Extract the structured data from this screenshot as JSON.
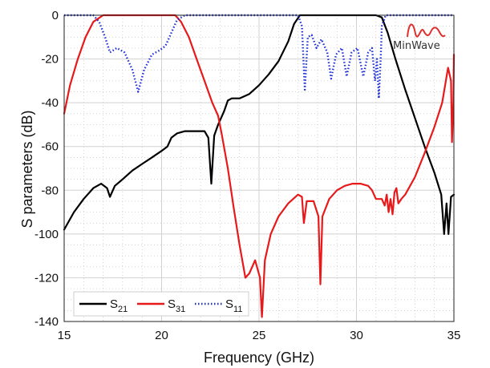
{
  "chart_data": {
    "type": "line",
    "xlabel": "Frequency (GHz)",
    "ylabel": "S parameters (dB)",
    "xlim": [
      15,
      35
    ],
    "ylim": [
      -140,
      0
    ],
    "xticks": [
      15,
      20,
      25,
      30,
      35
    ],
    "yticks": [
      0,
      -20,
      -40,
      -60,
      -80,
      -100,
      -120,
      -140
    ],
    "grid": true,
    "minor_grid": true,
    "legend_position": "bottom-left",
    "logo": "MinWave",
    "series": [
      {
        "name": "S21",
        "base": "S",
        "sub": "21",
        "color": "#000000",
        "dash": "solid",
        "points": [
          [
            15,
            -98
          ],
          [
            15.5,
            -90
          ],
          [
            16,
            -84
          ],
          [
            16.5,
            -79
          ],
          [
            16.9,
            -77
          ],
          [
            17.2,
            -79
          ],
          [
            17.35,
            -83
          ],
          [
            17.6,
            -78
          ],
          [
            18,
            -75
          ],
          [
            18.5,
            -71
          ],
          [
            19,
            -68
          ],
          [
            19.5,
            -65
          ],
          [
            20,
            -62
          ],
          [
            20.3,
            -60
          ],
          [
            20.5,
            -56
          ],
          [
            20.8,
            -54
          ],
          [
            21.2,
            -53
          ],
          [
            21.6,
            -53
          ],
          [
            22.2,
            -53
          ],
          [
            22.4,
            -56
          ],
          [
            22.55,
            -77
          ],
          [
            22.7,
            -55
          ],
          [
            22.9,
            -50
          ],
          [
            23.2,
            -44
          ],
          [
            23.4,
            -39
          ],
          [
            23.6,
            -38
          ],
          [
            24,
            -38
          ],
          [
            24.5,
            -36
          ],
          [
            25,
            -32
          ],
          [
            25.5,
            -27
          ],
          [
            26,
            -21
          ],
          [
            26.5,
            -12
          ],
          [
            26.8,
            -4
          ],
          [
            27.1,
            0
          ],
          [
            28,
            0
          ],
          [
            30,
            0
          ],
          [
            31,
            0
          ],
          [
            31.3,
            -1
          ],
          [
            31.6,
            -8
          ],
          [
            32,
            -20
          ],
          [
            32.5,
            -34
          ],
          [
            33,
            -47
          ],
          [
            33.5,
            -60
          ],
          [
            34,
            -72
          ],
          [
            34.35,
            -82
          ],
          [
            34.5,
            -100
          ],
          [
            34.62,
            -86
          ],
          [
            34.72,
            -100
          ],
          [
            34.85,
            -83
          ],
          [
            35,
            -82
          ]
        ]
      },
      {
        "name": "S31",
        "base": "S",
        "sub": "31",
        "color": "#e8191b",
        "dash": "solid",
        "points": [
          [
            15,
            -45
          ],
          [
            15.3,
            -32
          ],
          [
            15.7,
            -20
          ],
          [
            16.1,
            -10
          ],
          [
            16.5,
            -3
          ],
          [
            17,
            0
          ],
          [
            18,
            0
          ],
          [
            20,
            0
          ],
          [
            20.7,
            0
          ],
          [
            21,
            -3
          ],
          [
            21.4,
            -10
          ],
          [
            21.8,
            -20
          ],
          [
            22.2,
            -30
          ],
          [
            22.6,
            -40
          ],
          [
            22.9,
            -46
          ],
          [
            23.1,
            -55
          ],
          [
            23.4,
            -70
          ],
          [
            23.7,
            -88
          ],
          [
            24,
            -105
          ],
          [
            24.3,
            -120
          ],
          [
            24.5,
            -118
          ],
          [
            24.8,
            -112
          ],
          [
            25.05,
            -120
          ],
          [
            25.15,
            -138
          ],
          [
            25.3,
            -112
          ],
          [
            25.6,
            -100
          ],
          [
            26,
            -92
          ],
          [
            26.5,
            -86
          ],
          [
            27,
            -82
          ],
          [
            27.2,
            -83
          ],
          [
            27.3,
            -95
          ],
          [
            27.45,
            -85
          ],
          [
            27.8,
            -85
          ],
          [
            28.05,
            -92
          ],
          [
            28.15,
            -123
          ],
          [
            28.25,
            -92
          ],
          [
            28.6,
            -84
          ],
          [
            29,
            -80
          ],
          [
            29.4,
            -78
          ],
          [
            29.8,
            -77
          ],
          [
            30.2,
            -77
          ],
          [
            30.6,
            -78
          ],
          [
            30.8,
            -80
          ],
          [
            31,
            -84
          ],
          [
            31.3,
            -84
          ],
          [
            31.45,
            -87
          ],
          [
            31.55,
            -82
          ],
          [
            31.65,
            -90
          ],
          [
            31.75,
            -84
          ],
          [
            31.85,
            -91
          ],
          [
            31.95,
            -81
          ],
          [
            32.05,
            -79
          ],
          [
            32.15,
            -86
          ],
          [
            32.3,
            -84
          ],
          [
            32.5,
            -82
          ],
          [
            33,
            -74
          ],
          [
            33.5,
            -63
          ],
          [
            34,
            -51
          ],
          [
            34.4,
            -40
          ],
          [
            34.7,
            -24
          ],
          [
            34.85,
            -30
          ],
          [
            34.9,
            -58
          ],
          [
            34.97,
            -40
          ],
          [
            35,
            -18
          ]
        ]
      },
      {
        "name": "S11",
        "base": "S",
        "sub": "11",
        "color": "#1d2fd6",
        "dash": "dotted",
        "points": [
          [
            15,
            0
          ],
          [
            16.5,
            0
          ],
          [
            16.8,
            -3
          ],
          [
            17.1,
            -10
          ],
          [
            17.35,
            -17
          ],
          [
            17.7,
            -15
          ],
          [
            18.1,
            -17
          ],
          [
            18.5,
            -25
          ],
          [
            18.8,
            -35
          ],
          [
            19.1,
            -25
          ],
          [
            19.5,
            -18
          ],
          [
            19.9,
            -16
          ],
          [
            20.2,
            -14
          ],
          [
            20.5,
            -8
          ],
          [
            20.8,
            -2
          ],
          [
            21.2,
            0
          ],
          [
            27,
            0
          ],
          [
            27.2,
            -5
          ],
          [
            27.35,
            -34
          ],
          [
            27.5,
            -10
          ],
          [
            27.7,
            -9
          ],
          [
            27.95,
            -15
          ],
          [
            28.2,
            -11
          ],
          [
            28.5,
            -17
          ],
          [
            28.7,
            -29
          ],
          [
            28.95,
            -18
          ],
          [
            29.25,
            -15
          ],
          [
            29.5,
            -28
          ],
          [
            29.75,
            -17
          ],
          [
            30.05,
            -15
          ],
          [
            30.35,
            -28
          ],
          [
            30.6,
            -17
          ],
          [
            30.8,
            -15
          ],
          [
            30.95,
            -30
          ],
          [
            31.05,
            -20
          ],
          [
            31.15,
            -38
          ],
          [
            31.25,
            -18
          ],
          [
            31.3,
            -5
          ],
          [
            31.5,
            0
          ],
          [
            35,
            0
          ]
        ]
      }
    ]
  }
}
